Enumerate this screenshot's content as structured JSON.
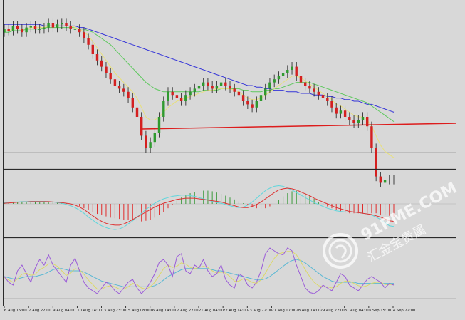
{
  "chart_data": [
    {
      "type": "candlestick",
      "panel": "price",
      "x_tick_labels": [
        "6 Aug 15:00",
        "7 Aug 22:00",
        "9 Aug 04:00",
        "10 Aug 14:00",
        "13 Aug 23:00",
        "15 Aug 08:00",
        "16 Aug 14:00",
        "17 Aug 22:00",
        "21 Aug 04:00",
        "22 Aug 14:00",
        "23 Aug 22:00",
        "27 Aug 07:00",
        "28 Aug 14:00",
        "29 Aug 22:00",
        "31 Aug 04:00",
        "3 Sep 15:00",
        "4 Sep 22:00"
      ],
      "ylim": [
        0,
        100
      ],
      "close": [
        86,
        85,
        88,
        86,
        84,
        87,
        88,
        86,
        86,
        87,
        90,
        87,
        89,
        90,
        88,
        86,
        86,
        84,
        80,
        76,
        70,
        66,
        62,
        58,
        54,
        50,
        48,
        46,
        42,
        36,
        30,
        18,
        10,
        14,
        20,
        30,
        40,
        46,
        44,
        42,
        40,
        44,
        46,
        48,
        50,
        52,
        50,
        48,
        50,
        52,
        50,
        48,
        46,
        44,
        40,
        38,
        36,
        40,
        44,
        48,
        52,
        54,
        56,
        58,
        60,
        62,
        56,
        52,
        50,
        48,
        46,
        44,
        42,
        40,
        36,
        32,
        34,
        30,
        28,
        26,
        28,
        30,
        24,
        10,
        -8,
        -12,
        -10,
        -10,
        -10
      ],
      "ma_fast": [
        85,
        85,
        86,
        86,
        86,
        86,
        87,
        87,
        87,
        87,
        88,
        88,
        88,
        88,
        88,
        88,
        87,
        86,
        84,
        82,
        78,
        74,
        70,
        66,
        62,
        58,
        55,
        52,
        49,
        46,
        42,
        36,
        30,
        28,
        28,
        30,
        33,
        36,
        38,
        40,
        41,
        42,
        43,
        44,
        45,
        46,
        47,
        47,
        48,
        48,
        48,
        48,
        47,
        46,
        44,
        42,
        41,
        41,
        42,
        44,
        46,
        48,
        50,
        52,
        54,
        56,
        56,
        55,
        53,
        51,
        49,
        47,
        45,
        43,
        41,
        38,
        37,
        35,
        33,
        31,
        30,
        30,
        28,
        24,
        18,
        12,
        8,
        6,
        4
      ],
      "ma_medium": [
        84,
        84,
        85,
        85,
        85,
        86,
        86,
        86,
        86,
        87,
        87,
        87,
        87,
        87,
        87,
        87,
        87,
        86,
        86,
        85,
        84,
        82,
        80,
        78,
        76,
        73,
        70,
        67,
        64,
        61,
        58,
        55,
        52,
        50,
        48,
        47,
        46,
        46,
        46,
        46,
        46,
        46,
        46,
        46,
        46,
        47,
        47,
        47,
        47,
        48,
        48,
        48,
        48,
        48,
        47,
        47,
        46,
        46,
        46,
        47,
        47,
        48,
        48,
        49,
        50,
        51,
        52,
        52,
        52,
        52,
        51,
        50,
        49,
        48,
        47,
        46,
        45,
        44,
        43,
        42,
        41,
        40,
        39,
        37,
        35,
        33,
        31,
        29,
        27
      ],
      "ma_slow": [
        89,
        89,
        89,
        89,
        89,
        89,
        89,
        89,
        89,
        88,
        88,
        88,
        88,
        88,
        88,
        88,
        88,
        87,
        87,
        86,
        85,
        84,
        83,
        82,
        81,
        80,
        79,
        78,
        77,
        76,
        75,
        74,
        73,
        72,
        71,
        70,
        69,
        68,
        67,
        66,
        65,
        64,
        63,
        62,
        61,
        60,
        59,
        58,
        57,
        56,
        55,
        54,
        53,
        52,
        51,
        50,
        50,
        49,
        49,
        48,
        48,
        47,
        47,
        47,
        46,
        46,
        46,
        45,
        45,
        45,
        44,
        44,
        44,
        43,
        43,
        42,
        42,
        41,
        41,
        40,
        40,
        39,
        38,
        38,
        37,
        36,
        35,
        34,
        33
      ],
      "support_level": 25
    },
    {
      "type": "histogram",
      "panel": "macd",
      "ylim": [
        -100,
        100
      ],
      "histogram": [
        4,
        4,
        5,
        5,
        5,
        6,
        6,
        6,
        6,
        5,
        5,
        5,
        4,
        3,
        2,
        1,
        -4,
        -8,
        -14,
        -20,
        -26,
        -32,
        -36,
        -40,
        -44,
        -46,
        -48,
        -50,
        -52,
        -54,
        -56,
        -56,
        -54,
        -50,
        -44,
        -36,
        -26,
        -14,
        -2,
        10,
        20,
        28,
        34,
        38,
        40,
        42,
        42,
        40,
        36,
        32,
        26,
        20,
        14,
        8,
        2,
        -4,
        -10,
        -14,
        -16,
        -14,
        -8,
        0,
        12,
        24,
        34,
        40,
        42,
        40,
        34,
        26,
        16,
        6,
        -2,
        -8,
        -14,
        -20,
        -24,
        -28,
        -30,
        -30,
        -30,
        -30,
        -30,
        -30,
        -30,
        -34,
        -36,
        -38,
        -40
      ],
      "signal_a": [
        4,
        5,
        6,
        6,
        7,
        7,
        8,
        8,
        8,
        8,
        7,
        6,
        4,
        2,
        -2,
        -6,
        -12,
        -20,
        -30,
        -42,
        -52,
        -62,
        -70,
        -76,
        -80,
        -82,
        -80,
        -74,
        -64,
        -54,
        -42,
        -30,
        -18,
        -8,
        2,
        10,
        16,
        20,
        24,
        26,
        28,
        28,
        26,
        24,
        20,
        16,
        12,
        8,
        4,
        2,
        -2,
        -6,
        -10,
        -12,
        -10,
        -4,
        6,
        18,
        30,
        42,
        50,
        56,
        58,
        56,
        50,
        44,
        36,
        28,
        20,
        12,
        4,
        -2,
        -8,
        -14,
        -18,
        -22,
        -24,
        -26,
        -26,
        -26,
        -28,
        -30,
        -32,
        -36,
        -42,
        -50,
        -60,
        -70,
        -72
      ],
      "signal_b": [
        2,
        3,
        4,
        5,
        6,
        6,
        7,
        7,
        7,
        7,
        7,
        6,
        5,
        4,
        2,
        0,
        -4,
        -10,
        -18,
        -28,
        -38,
        -48,
        -56,
        -62,
        -66,
        -68,
        -68,
        -64,
        -58,
        -50,
        -42,
        -34,
        -26,
        -18,
        -10,
        -4,
        2,
        6,
        10,
        14,
        16,
        18,
        18,
        18,
        16,
        14,
        12,
        10,
        8,
        6,
        2,
        -2,
        -6,
        -10,
        -12,
        -12,
        -8,
        -2,
        6,
        16,
        26,
        36,
        44,
        48,
        50,
        48,
        44,
        38,
        32,
        26,
        18,
        12,
        6,
        0,
        -6,
        -12,
        -16,
        -20,
        -24,
        -26,
        -28,
        -30,
        -32,
        -34,
        -38,
        -42,
        -48,
        -54,
        -56
      ]
    },
    {
      "type": "line",
      "panel": "oscillator",
      "ylim": [
        0,
        100
      ],
      "series_main": [
        40,
        30,
        25,
        50,
        60,
        45,
        30,
        55,
        70,
        60,
        78,
        60,
        50,
        40,
        30,
        60,
        72,
        50,
        30,
        20,
        15,
        10,
        20,
        30,
        25,
        15,
        10,
        20,
        30,
        35,
        20,
        10,
        18,
        30,
        45,
        65,
        70,
        60,
        40,
        75,
        80,
        50,
        45,
        60,
        55,
        70,
        50,
        40,
        45,
        60,
        35,
        25,
        20,
        45,
        40,
        25,
        20,
        30,
        50,
        80,
        90,
        85,
        80,
        78,
        90,
        85,
        60,
        40,
        20,
        12,
        10,
        15,
        25,
        20,
        15,
        30,
        45,
        40,
        25,
        20,
        15,
        25,
        35,
        40,
        35,
        30,
        20,
        28,
        25
      ],
      "series_fast": [
        38,
        34,
        30,
        36,
        44,
        46,
        42,
        44,
        52,
        56,
        62,
        62,
        58,
        50,
        42,
        46,
        54,
        52,
        44,
        34,
        26,
        18,
        18,
        22,
        24,
        22,
        18,
        18,
        22,
        28,
        26,
        20,
        18,
        22,
        30,
        42,
        54,
        60,
        56,
        58,
        64,
        62,
        56,
        54,
        56,
        58,
        56,
        50,
        46,
        48,
        46,
        40,
        32,
        32,
        36,
        34,
        30,
        28,
        34,
        46,
        60,
        72,
        80,
        82,
        84,
        84,
        78,
        66,
        52,
        40,
        30,
        24,
        22,
        22,
        20,
        22,
        28,
        32,
        32,
        28,
        24,
        22,
        24,
        28,
        30,
        30,
        26,
        26,
        26
      ],
      "series_slow": [
        40,
        38,
        36,
        36,
        38,
        40,
        40,
        40,
        42,
        44,
        48,
        52,
        54,
        54,
        52,
        50,
        50,
        50,
        48,
        44,
        40,
        36,
        32,
        30,
        28,
        26,
        24,
        22,
        22,
        22,
        22,
        22,
        22,
        22,
        24,
        28,
        34,
        40,
        44,
        48,
        52,
        54,
        54,
        54,
        54,
        54,
        54,
        52,
        50,
        50,
        48,
        46,
        44,
        42,
        40,
        38,
        36,
        34,
        34,
        36,
        40,
        46,
        52,
        58,
        64,
        68,
        70,
        68,
        64,
        58,
        52,
        46,
        40,
        36,
        32,
        30,
        30,
        30,
        30,
        30,
        28,
        28,
        28,
        28,
        28,
        28,
        28,
        28,
        28
      ]
    }
  ],
  "watermark": {
    "brand": "91PME.COM",
    "chinese": "汇金宝贵属"
  },
  "colors": {
    "background": "#d8d8d8",
    "separator": "#2a2a2a",
    "bull_candle": "#2f9a2f",
    "bear_candle": "#d42020",
    "wick": "#1a1a1a",
    "ma_fast": "#e8e07a",
    "ma_medium": "#5ec85e",
    "ma_slow": "#3535d8",
    "support_line": "#dd1c1c",
    "grid": "#bdbdbd",
    "hist_pos": "#3c9a3c",
    "hist_neg": "#e02a2a",
    "signal_a": "#5fd6dc",
    "signal_b": "#dd3030",
    "osc_main": "#9a5ad8",
    "osc_fast": "#dcd868",
    "osc_slow": "#5ab8d4",
    "axis_text": "#111111",
    "watermark": "#ffffff"
  }
}
